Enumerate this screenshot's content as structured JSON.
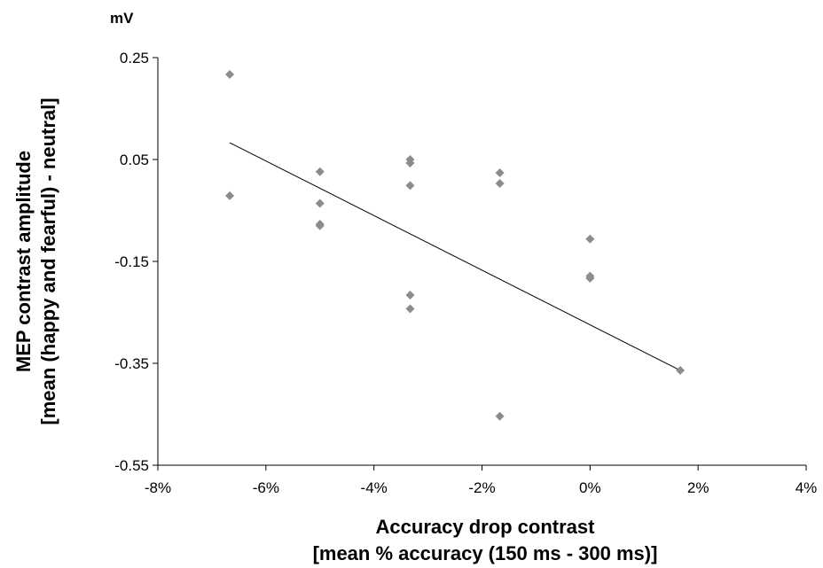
{
  "chart_data": {
    "type": "scatter",
    "unit_label": "mV",
    "ylabel_line1": "MEP contrast amplitude",
    "ylabel_line2": "[mean (happy and fearful) - neutral]",
    "xlabel_line1": "Accuracy drop contrast",
    "xlabel_line2": "[mean % accuracy (150 ms - 300 ms)]",
    "xlim": [
      -8,
      4
    ],
    "ylim": [
      -0.55,
      0.25
    ],
    "x_ticks": [
      -8,
      -6,
      -4,
      -2,
      0,
      2,
      4
    ],
    "x_tick_labels": [
      "-8%",
      "-6%",
      "-4%",
      "-2%",
      "0%",
      "2%",
      "4%"
    ],
    "y_ticks": [
      0.25,
      0.05,
      -0.15,
      -0.35,
      -0.55
    ],
    "y_tick_labels": [
      "0.25",
      "0.05",
      "-0.15",
      "-0.35",
      "-0.55"
    ],
    "grid": false,
    "legend": "none",
    "marker_color": "#8c8c8c",
    "trendline_color": "#000000",
    "points": [
      {
        "x": -6.67,
        "y": 0.217
      },
      {
        "x": -6.67,
        "y": -0.021
      },
      {
        "x": -5.0,
        "y": 0.026
      },
      {
        "x": -5.0,
        "y": -0.036
      },
      {
        "x": -5.0,
        "y": -0.077
      },
      {
        "x": -5.0,
        "y": -0.08
      },
      {
        "x": -3.33,
        "y": 0.05
      },
      {
        "x": -3.33,
        "y": 0.043
      },
      {
        "x": -3.33,
        "y": -0.001
      },
      {
        "x": -3.33,
        "y": -0.216
      },
      {
        "x": -3.33,
        "y": -0.243
      },
      {
        "x": -1.67,
        "y": 0.024
      },
      {
        "x": -1.67,
        "y": 0.003
      },
      {
        "x": -1.67,
        "y": -0.454
      },
      {
        "x": 0.0,
        "y": -0.106
      },
      {
        "x": 0.0,
        "y": -0.179
      },
      {
        "x": 0.0,
        "y": -0.183
      },
      {
        "x": 1.67,
        "y": -0.364
      }
    ],
    "trendline": {
      "x": [
        -6.67,
        1.67
      ],
      "y": [
        0.083,
        -0.364
      ]
    }
  }
}
